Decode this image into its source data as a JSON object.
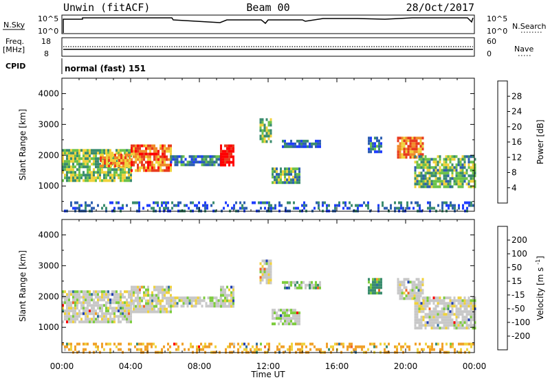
{
  "header": {
    "station": "Unwin (fitACF)",
    "beam": "Beam 00",
    "date": "28/Oct/2017"
  },
  "summary": {
    "nsky": {
      "label": "N.Sky",
      "tick_top": "10^5",
      "tick_bottom": "10^0"
    },
    "nsearch": {
      "label": "N.Search",
      "tick_top": "10^5",
      "tick_bottom": "10^0"
    },
    "freq": {
      "label_line1": "Freq.",
      "label_line2": "[MHz]",
      "tick_top": "18",
      "tick_bottom": "8"
    },
    "nave": {
      "label": "Nave",
      "tick_top": "60",
      "tick_bottom": "0"
    },
    "cpid": {
      "label": "CPID",
      "value": "normal (fast) 151"
    }
  },
  "power_colorbar": {
    "title": "Power [dB]",
    "ticks": [
      "4",
      "8",
      "12",
      "16",
      "20",
      "24",
      "28"
    ],
    "colors": [
      "#1e3cff",
      "#2d5fb0",
      "#3a8c6e",
      "#6cc24a",
      "#f0d23c",
      "#f08a28",
      "#e83a1e",
      "#ff0000"
    ]
  },
  "velocity_colorbar": {
    "title": "Velocity [m s",
    "title_sup": "-1",
    "title_end": "]",
    "ticks": [
      "200",
      "100",
      "50",
      "15",
      "-15",
      "-50",
      "-100",
      "-200"
    ],
    "colors": [
      "#1e3cb4",
      "#2f6ea0",
      "#3a8c6e",
      "#7ccc3c",
      "#c8c8c8",
      "#f0d23c",
      "#f0a028",
      "#f06428",
      "#ff0000"
    ]
  },
  "xaxis": {
    "label": "Time UT",
    "ticks": [
      "00:00",
      "04:00",
      "08:00",
      "12:00",
      "16:00",
      "20:00",
      "00:00"
    ]
  },
  "chart_data": [
    {
      "type": "heatmap",
      "title": "",
      "ylabel": "Slant Range [km]",
      "xlabel": "",
      "xlim": [
        "00:00",
        "24:00"
      ],
      "ylim": [
        180,
        4500
      ],
      "yticks": [
        1000,
        2000,
        3000,
        4000
      ],
      "colorbar": "Power [dB]",
      "clim": [
        0,
        32
      ],
      "patches": [
        {
          "t": [
            0.0,
            4.0
          ],
          "r": [
            1200,
            2200
          ],
          "value": 14
        },
        {
          "t": [
            2.2,
            4.0
          ],
          "r": [
            1650,
            2050
          ],
          "value": 22
        },
        {
          "t": [
            4.0,
            6.3
          ],
          "r": [
            1500,
            2350
          ],
          "value": 24
        },
        {
          "t": [
            6.3,
            9.2
          ],
          "r": [
            1650,
            2000
          ],
          "value": 8
        },
        {
          "t": [
            9.2,
            10.0
          ],
          "r": [
            1650,
            2350
          ],
          "value": 30
        },
        {
          "t": [
            11.5,
            12.2
          ],
          "r": [
            2400,
            3200
          ],
          "value": 14
        },
        {
          "t": [
            12.2,
            13.8
          ],
          "r": [
            1100,
            1600
          ],
          "value": 12
        },
        {
          "t": [
            12.8,
            15.0
          ],
          "r": [
            2300,
            2500
          ],
          "value": 6
        },
        {
          "t": [
            17.8,
            18.6
          ],
          "r": [
            2100,
            2600
          ],
          "value": 8
        },
        {
          "t": [
            19.5,
            21.0
          ],
          "r": [
            1900,
            2600
          ],
          "value": 22
        },
        {
          "t": [
            20.5,
            24.0
          ],
          "r": [
            1000,
            2000
          ],
          "value": 12
        },
        {
          "t": [
            0.0,
            24.0
          ],
          "r": [
            200,
            500
          ],
          "value": 6
        }
      ]
    },
    {
      "type": "heatmap",
      "title": "",
      "ylabel": "Slant Range [km]",
      "xlabel": "Time UT",
      "xlim": [
        "00:00",
        "24:00"
      ],
      "ylim": [
        180,
        4500
      ],
      "yticks": [
        1000,
        2000,
        3000,
        4000
      ],
      "colorbar": "Velocity [m s-1]",
      "clim": [
        -250,
        250
      ],
      "patches": [
        {
          "t": [
            0.0,
            4.0
          ],
          "r": [
            1200,
            2200
          ],
          "value": 0
        },
        {
          "t": [
            4.0,
            6.3
          ],
          "r": [
            1500,
            2350
          ],
          "value": 0
        },
        {
          "t": [
            6.3,
            9.2
          ],
          "r": [
            1650,
            2000
          ],
          "value": 0
        },
        {
          "t": [
            9.2,
            10.0
          ],
          "r": [
            1650,
            2350
          ],
          "value": 0
        },
        {
          "t": [
            11.5,
            12.2
          ],
          "r": [
            2400,
            3200
          ],
          "value": 0
        },
        {
          "t": [
            12.2,
            13.8
          ],
          "r": [
            1100,
            1600
          ],
          "value": 10
        },
        {
          "t": [
            12.8,
            15.0
          ],
          "r": [
            2300,
            2500
          ],
          "value": 20
        },
        {
          "t": [
            17.8,
            18.6
          ],
          "r": [
            2100,
            2600
          ],
          "value": 40
        },
        {
          "t": [
            19.5,
            21.0
          ],
          "r": [
            1900,
            2600
          ],
          "value": 0
        },
        {
          "t": [
            20.5,
            24.0
          ],
          "r": [
            1000,
            2000
          ],
          "value": 0
        },
        {
          "t": [
            0.0,
            24.0
          ],
          "r": [
            200,
            500
          ],
          "value": -40
        }
      ]
    }
  ]
}
